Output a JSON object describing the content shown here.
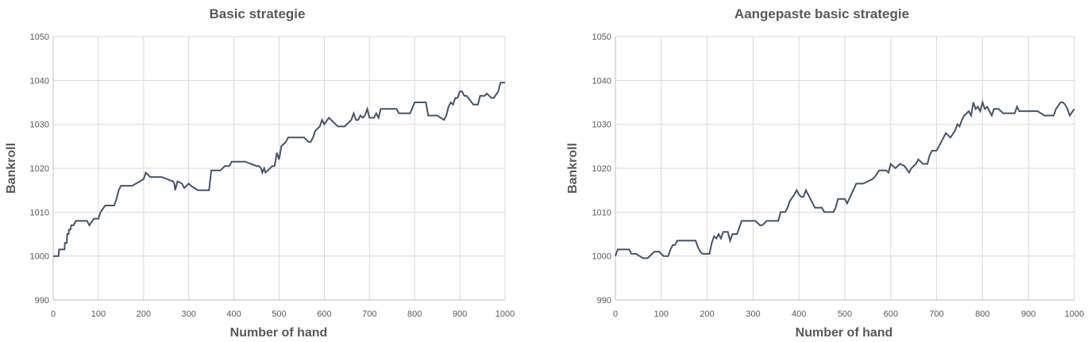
{
  "chart_data": [
    {
      "type": "line",
      "title": "Basic strategie",
      "xlabel": "Number of hand",
      "ylabel": "Bankroll",
      "xlim": [
        0,
        1000
      ],
      "ylim": [
        990,
        1050
      ],
      "xticks": [
        0,
        100,
        200,
        300,
        400,
        500,
        600,
        700,
        800,
        900,
        1000
      ],
      "yticks": [
        990,
        1000,
        1010,
        1020,
        1030,
        1040,
        1050
      ],
      "grid": true,
      "line_color": "#44546a",
      "series": [
        {
          "x": [
            0,
            12,
            13,
            25,
            26,
            30,
            31,
            34,
            35,
            38,
            40,
            45,
            50,
            75,
            80,
            90,
            100,
            105,
            115,
            135,
            140,
            145,
            150,
            175,
            200,
            205,
            215,
            240,
            265,
            268,
            270,
            275,
            285,
            290,
            300,
            305,
            320,
            345,
            350,
            370,
            380,
            390,
            395,
            425,
            450,
            455,
            460,
            463,
            467,
            470,
            475,
            485,
            490,
            495,
            500,
            505,
            510,
            515,
            520,
            555,
            565,
            570,
            575,
            580,
            585,
            590,
            595,
            600,
            610,
            620,
            630,
            645,
            655,
            660,
            665,
            670,
            675,
            680,
            685,
            690,
            695,
            700,
            710,
            715,
            720,
            725,
            760,
            765,
            790,
            800,
            825,
            830,
            850,
            865,
            870,
            875,
            880,
            885,
            890,
            895,
            900,
            905,
            910,
            915,
            930,
            940,
            945,
            955,
            960,
            970,
            975,
            985,
            990,
            1000
          ],
          "values": [
            1000,
            1000,
            1001.5,
            1001.5,
            1003,
            1003,
            1005,
            1005,
            1006,
            1006,
            1007,
            1007,
            1008,
            1008,
            1007,
            1008.5,
            1008.5,
            1010,
            1011.5,
            1011.5,
            1013,
            1015,
            1016,
            1016,
            1017.5,
            1019,
            1018,
            1018,
            1017,
            1016.5,
            1015,
            1017,
            1016.5,
            1015.5,
            1016.5,
            1016,
            1015,
            1015,
            1019.5,
            1019.5,
            1020.5,
            1020.5,
            1021.5,
            1021.5,
            1020.5,
            1020.5,
            1020,
            1019,
            1020,
            1019,
            1019.5,
            1020.5,
            1020.5,
            1023.5,
            1022,
            1025,
            1025.5,
            1026,
            1027,
            1027,
            1026,
            1026,
            1027,
            1028.5,
            1029,
            1029.5,
            1031,
            1030,
            1031.5,
            1030.5,
            1029.5,
            1029.5,
            1030.5,
            1031,
            1032.5,
            1031,
            1031,
            1032,
            1031.5,
            1032,
            1033.5,
            1031.5,
            1031.5,
            1032.5,
            1031.5,
            1033.5,
            1033.5,
            1032.5,
            1032.5,
            1035,
            1035,
            1032,
            1032,
            1031,
            1032,
            1034,
            1035,
            1034.5,
            1036,
            1036,
            1037.5,
            1037.5,
            1036.5,
            1036.5,
            1034.5,
            1034.5,
            1036.5,
            1036.5,
            1037,
            1036,
            1036,
            1037.5,
            1039.5,
            1039.5
          ]
        }
      ]
    },
    {
      "type": "line",
      "title": "Aangepaste basic strategie",
      "xlabel": "Number of hand",
      "ylabel": "Bankroll",
      "xlim": [
        0,
        1000
      ],
      "ylim": [
        990,
        1050
      ],
      "xticks": [
        0,
        100,
        200,
        300,
        400,
        500,
        600,
        700,
        800,
        900,
        1000
      ],
      "yticks": [
        990,
        1000,
        1010,
        1020,
        1030,
        1040,
        1050
      ],
      "grid": true,
      "line_color": "#44546a",
      "series": [
        {
          "x": [
            0,
            5,
            30,
            35,
            45,
            60,
            70,
            85,
            95,
            105,
            115,
            120,
            125,
            130,
            135,
            175,
            180,
            185,
            190,
            205,
            210,
            215,
            220,
            225,
            230,
            235,
            245,
            250,
            255,
            265,
            270,
            275,
            305,
            315,
            320,
            330,
            355,
            360,
            370,
            375,
            380,
            390,
            395,
            400,
            405,
            410,
            415,
            420,
            425,
            430,
            435,
            450,
            455,
            475,
            480,
            485,
            500,
            505,
            525,
            540,
            560,
            565,
            575,
            590,
            595,
            600,
            610,
            620,
            630,
            640,
            645,
            655,
            660,
            670,
            680,
            685,
            690,
            700,
            705,
            710,
            715,
            720,
            730,
            740,
            745,
            750,
            755,
            760,
            770,
            775,
            780,
            785,
            790,
            795,
            800,
            805,
            810,
            815,
            820,
            825,
            835,
            845,
            870,
            875,
            880,
            920,
            935,
            955,
            960,
            970,
            975,
            980,
            985,
            990,
            1000
          ],
          "values": [
            1000,
            1001.5,
            1001.5,
            1000.5,
            1000.5,
            999.5,
            999.5,
            1001,
            1001,
            1000,
            1000,
            1001.5,
            1002.5,
            1002.5,
            1003.5,
            1003.5,
            1002,
            1001,
            1000.5,
            1000.5,
            1003,
            1004.5,
            1004,
            1005,
            1004,
            1005.5,
            1005.5,
            1003.5,
            1005,
            1005,
            1006.5,
            1008,
            1008,
            1007,
            1007,
            1008,
            1008,
            1010,
            1010,
            1011,
            1012.5,
            1014,
            1015,
            1014,
            1013.5,
            1013.5,
            1015,
            1014,
            1013,
            1012,
            1011,
            1011,
            1010,
            1010,
            1011,
            1013,
            1013,
            1012,
            1016.5,
            1016.5,
            1017.5,
            1018,
            1019.5,
            1019.5,
            1019,
            1021,
            1020,
            1021,
            1020.5,
            1019,
            1020,
            1021,
            1022,
            1021,
            1021,
            1023,
            1024,
            1024,
            1025,
            1026,
            1027,
            1028,
            1027,
            1028.5,
            1030,
            1029.5,
            1031,
            1032,
            1033,
            1032,
            1035,
            1033.5,
            1034,
            1033,
            1035,
            1033.5,
            1034,
            1033,
            1032,
            1033.5,
            1033.5,
            1032.5,
            1032.5,
            1034,
            1033,
            1033,
            1032,
            1032,
            1033.5,
            1035,
            1035,
            1034.5,
            1033.5,
            1032,
            1033.5
          ]
        }
      ]
    }
  ]
}
